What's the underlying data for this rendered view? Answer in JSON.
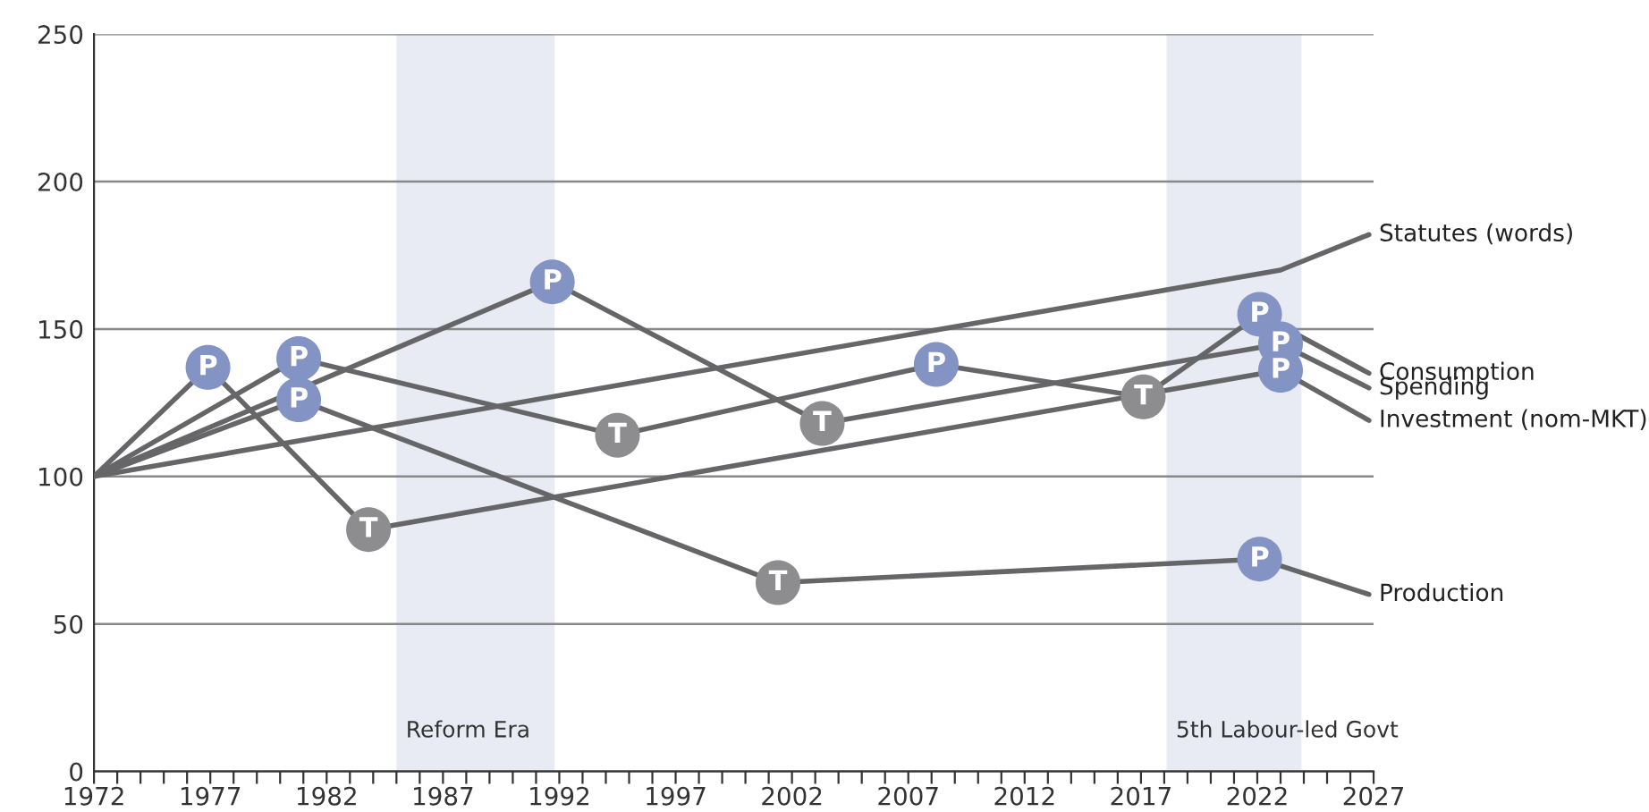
{
  "chart_data": {
    "type": "line",
    "xlim": [
      1972,
      2027
    ],
    "ylim": [
      0,
      250
    ],
    "xticks": [
      1972,
      {
        "value": 1973,
        "label": null
      },
      {
        "value": 1974,
        "label": null
      },
      {
        "value": 1975,
        "label": null
      },
      {
        "value": 1976,
        "label": null
      },
      1977,
      {
        "value": 1978,
        "label": null
      },
      {
        "value": 1979,
        "label": null
      },
      {
        "value": 1980,
        "label": null
      },
      {
        "value": 1981,
        "label": null
      },
      1982,
      {
        "value": 1983,
        "label": null
      },
      {
        "value": 1984,
        "label": null
      },
      {
        "value": 1985,
        "label": null
      },
      {
        "value": 1986,
        "label": null
      },
      1987,
      {
        "value": 1988,
        "label": null
      },
      {
        "value": 1989,
        "label": null
      },
      {
        "value": 1990,
        "label": null
      },
      {
        "value": 1991,
        "label": null
      },
      1992,
      {
        "value": 1993,
        "label": null
      },
      {
        "value": 1994,
        "label": null
      },
      {
        "value": 1995,
        "label": null
      },
      {
        "value": 1996,
        "label": null
      },
      1997,
      {
        "value": 1998,
        "label": null
      },
      {
        "value": 1999,
        "label": null
      },
      {
        "value": 2000,
        "label": null
      },
      {
        "value": 2001,
        "label": null
      },
      2002,
      {
        "value": 2003,
        "label": null
      },
      {
        "value": 2004,
        "label": null
      },
      {
        "value": 2005,
        "label": null
      },
      {
        "value": 2006,
        "label": null
      },
      2007,
      {
        "value": 2008,
        "label": null
      },
      {
        "value": 2009,
        "label": null
      },
      {
        "value": 2010,
        "label": null
      },
      {
        "value": 2011,
        "label": null
      },
      2012,
      {
        "value": 2013,
        "label": null
      },
      {
        "value": 2014,
        "label": null
      },
      {
        "value": 2015,
        "label": null
      },
      {
        "value": 2016,
        "label": null
      },
      2017,
      {
        "value": 2018,
        "label": null
      },
      {
        "value": 2019,
        "label": null
      },
      {
        "value": 2020,
        "label": null
      },
      {
        "value": 2021,
        "label": null
      },
      2022,
      {
        "value": 2023,
        "label": null
      },
      {
        "value": 2024,
        "label": null
      },
      {
        "value": 2025,
        "label": null
      },
      {
        "value": 2026,
        "label": null
      },
      2027
    ],
    "yticks": [
      0,
      50,
      100,
      150,
      200,
      250
    ],
    "grid": "y",
    "legend": false,
    "marker": "circle",
    "line_style": "solid",
    "bands": [
      {
        "axis": "x",
        "from": 1985,
        "to": 1991.8,
        "label": "Reform Era",
        "color": "#e8ebf4"
      },
      {
        "axis": "x",
        "from": 2018.1,
        "to": 2023.9,
        "label": "5th Labour-led Govt",
        "color": "#e8ebf4"
      }
    ],
    "series": [
      {
        "name": "Statutes (words)",
        "color": "#666668",
        "x": [
          1972,
          2023,
          2026.8
        ],
        "values": [
          100,
          170,
          182
        ],
        "marker": "none"
      },
      {
        "name": "Consumption",
        "color": "#666668",
        "x": [
          1972,
          1980.8,
          1994.5,
          2008.2,
          2017.1,
          2022.1,
          2026.8
        ],
        "values": [
          100,
          140,
          114,
          138,
          127,
          155,
          135
        ],
        "value_labels": [
          null,
          "P",
          "T",
          "P",
          "T",
          "P",
          null
        ],
        "colors": [
          null,
          "#8393c3",
          "#8d8d90",
          "#8393c3",
          "#8d8d90",
          "#8393c3",
          null
        ]
      },
      {
        "name": "Spending",
        "color": "#666668",
        "x": [
          1972,
          1991.7,
          2003.3,
          2023,
          2026.8
        ],
        "values": [
          100,
          166,
          118,
          145,
          130
        ],
        "value_labels": [
          null,
          "P",
          "T",
          "P",
          null
        ],
        "colors": [
          null,
          "#8393c3",
          "#8d8d90",
          "#8393c3",
          null
        ]
      },
      {
        "name": "Investment (nom-MKT)",
        "color": "#666668",
        "x": [
          1972,
          1976.9,
          1983.8,
          2023,
          2026.8
        ],
        "values": [
          100,
          137,
          82,
          136,
          119
        ],
        "value_labels": [
          null,
          "P",
          "T",
          "P",
          null
        ],
        "colors": [
          null,
          "#8393c3",
          "#8d8d90",
          "#8393c3",
          null
        ]
      },
      {
        "name": "Production",
        "color": "#666668",
        "x": [
          1972,
          1980.8,
          2001.4,
          2022.1,
          2026.8
        ],
        "values": [
          100,
          126,
          64,
          72,
          60
        ],
        "value_labels": [
          null,
          "P",
          "T",
          "P",
          null
        ],
        "colors": [
          null,
          "#8393c3",
          "#8d8d90",
          "#8393c3",
          null
        ]
      }
    ]
  }
}
